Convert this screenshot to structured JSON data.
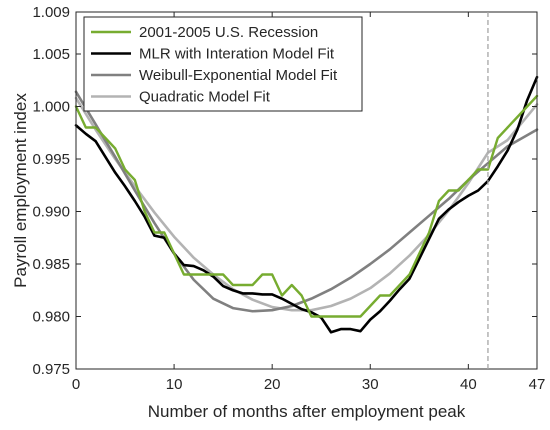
{
  "chart_data": {
    "type": "line",
    "xlabel": "Number of months after employment peak",
    "ylabel": "Payroll employment index",
    "xlim": [
      0,
      47
    ],
    "ylim": [
      0.975,
      1.009
    ],
    "xticks": [
      0,
      10,
      20,
      30,
      40,
      47
    ],
    "xtick_labels": [
      "0",
      "10",
      "20",
      "30",
      "40",
      "47"
    ],
    "yticks": [
      0.975,
      0.98,
      0.985,
      0.99,
      0.995,
      1.0,
      1.005,
      1.009
    ],
    "ytick_labels": [
      "0.975",
      "0.980",
      "0.985",
      "0.990",
      "0.995",
      "1.000",
      "1.005",
      "1.009"
    ],
    "grid": false,
    "legend_position": "top-left",
    "reference_line": {
      "x": 42,
      "style": "dashed",
      "color": "#a6a6a6"
    },
    "series": [
      {
        "name": "2001-2005 U.S. Recession",
        "color": "#77ac30",
        "x": [
          0,
          1,
          2,
          3,
          4,
          5,
          6,
          7,
          8,
          9,
          10,
          11,
          12,
          13,
          14,
          15,
          16,
          17,
          18,
          19,
          20,
          21,
          22,
          23,
          24,
          25,
          26,
          27,
          28,
          29,
          30,
          31,
          32,
          33,
          34,
          35,
          36,
          37,
          38,
          39,
          40,
          41,
          42,
          43,
          44,
          45,
          46,
          47
        ],
        "values": [
          1.0,
          0.998,
          0.998,
          0.997,
          0.996,
          0.994,
          0.993,
          0.99,
          0.988,
          0.988,
          0.986,
          0.984,
          0.984,
          0.984,
          0.984,
          0.984,
          0.983,
          0.983,
          0.983,
          0.984,
          0.984,
          0.982,
          0.983,
          0.982,
          0.98,
          0.98,
          0.98,
          0.98,
          0.98,
          0.98,
          0.981,
          0.982,
          0.982,
          0.983,
          0.984,
          0.986,
          0.988,
          0.991,
          0.992,
          0.992,
          0.993,
          0.994,
          0.994,
          0.997,
          0.998,
          0.999,
          1.0,
          1.001
        ]
      },
      {
        "name": "MLR with Interation Model Fit",
        "color": "#000000",
        "x": [
          0,
          1,
          2,
          3,
          4,
          5,
          6,
          7,
          8,
          9,
          10,
          11,
          12,
          13,
          14,
          15,
          16,
          17,
          18,
          19,
          20,
          21,
          22,
          23,
          24,
          25,
          26,
          27,
          28,
          29,
          30,
          31,
          32,
          33,
          34,
          35,
          36,
          37,
          38,
          39,
          40,
          41,
          42,
          43,
          44,
          45,
          46,
          47
        ],
        "values": [
          0.9982,
          0.9974,
          0.9967,
          0.9952,
          0.9937,
          0.9924,
          0.991,
          0.9895,
          0.9877,
          0.9875,
          0.986,
          0.9849,
          0.9848,
          0.9844,
          0.9838,
          0.9829,
          0.9825,
          0.9822,
          0.9822,
          0.9821,
          0.9821,
          0.9817,
          0.9812,
          0.9807,
          0.9804,
          0.9799,
          0.9785,
          0.9788,
          0.9788,
          0.9786,
          0.9797,
          0.9805,
          0.9815,
          0.9826,
          0.9836,
          0.9855,
          0.9874,
          0.9893,
          0.9902,
          0.9909,
          0.9915,
          0.992,
          0.9929,
          0.9943,
          0.9958,
          0.9978,
          1.0006,
          1.0028
        ]
      },
      {
        "name": "Weibull-Exponential Model Fit",
        "color": "#808080",
        "x": [
          0,
          2,
          4,
          6,
          8,
          10,
          12,
          14,
          16,
          18,
          20,
          22,
          24,
          26,
          28,
          30,
          32,
          34,
          36,
          38,
          40,
          42,
          44,
          47
        ],
        "values": [
          1.0014,
          0.9983,
          0.9952,
          0.992,
          0.9889,
          0.986,
          0.9835,
          0.9817,
          0.9808,
          0.9805,
          0.9806,
          0.981,
          0.9817,
          0.9826,
          0.9837,
          0.985,
          0.9864,
          0.988,
          0.9896,
          0.9912,
          0.993,
          0.9946,
          0.9962,
          0.9978
        ]
      },
      {
        "name": "Quadratic Model Fit",
        "color": "#b3b3b3",
        "x": [
          0,
          2,
          4,
          6,
          8,
          10,
          12,
          14,
          16,
          18,
          20,
          22,
          24,
          26,
          28,
          30,
          32,
          34,
          36,
          38,
          40,
          42,
          44,
          47
        ],
        "values": [
          1.0008,
          0.9978,
          0.995,
          0.9924,
          0.9899,
          0.9876,
          0.9856,
          0.984,
          0.9826,
          0.9816,
          0.9809,
          0.9806,
          0.9806,
          0.981,
          0.9817,
          0.9827,
          0.9841,
          0.9858,
          0.9878,
          0.9901,
          0.9927,
          0.9956,
          0.9968,
          1.0002
        ]
      }
    ]
  }
}
